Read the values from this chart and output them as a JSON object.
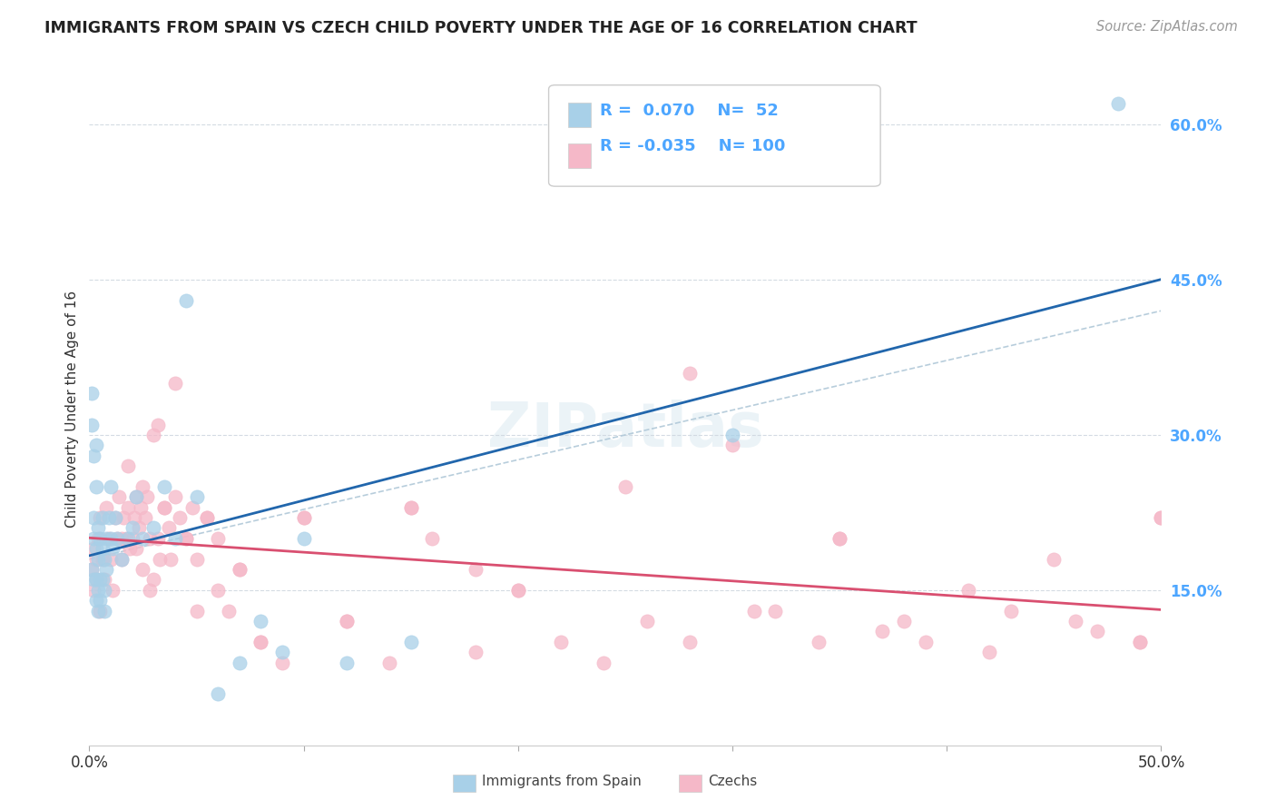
{
  "title": "IMMIGRANTS FROM SPAIN VS CZECH CHILD POVERTY UNDER THE AGE OF 16 CORRELATION CHART",
  "source": "Source: ZipAtlas.com",
  "ylabel": "Child Poverty Under the Age of 16",
  "xlim": [
    0,
    0.5
  ],
  "ylim": [
    0,
    0.65
  ],
  "xticks": [
    0.0,
    0.1,
    0.2,
    0.3,
    0.4,
    0.5
  ],
  "xticklabels": [
    "0.0%",
    "",
    "",
    "",
    "",
    "50.0%"
  ],
  "yticks_right": [
    0.15,
    0.3,
    0.45,
    0.6
  ],
  "ytick_labels_right": [
    "15.0%",
    "30.0%",
    "45.0%",
    "60.0%"
  ],
  "hlines": [
    0.15,
    0.3,
    0.45,
    0.6
  ],
  "blue_scatter_color": "#a8d0e8",
  "pink_scatter_color": "#f5b8c8",
  "blue_line_color": "#2166ac",
  "pink_line_color": "#d94f70",
  "dashed_line_color": "#b0c8d8",
  "right_axis_color": "#4da6ff",
  "legend_label1": "Immigrants from Spain",
  "legend_label2": "Czechs",
  "legend_R1": "R =  0.070",
  "legend_N1": "N=  52",
  "legend_R2": "R = -0.035",
  "legend_N2": "N= 100",
  "spain_x": [
    0.001,
    0.001,
    0.001,
    0.002,
    0.002,
    0.002,
    0.002,
    0.003,
    0.003,
    0.003,
    0.003,
    0.003,
    0.004,
    0.004,
    0.004,
    0.004,
    0.005,
    0.005,
    0.005,
    0.006,
    0.006,
    0.006,
    0.007,
    0.007,
    0.007,
    0.008,
    0.008,
    0.009,
    0.01,
    0.01,
    0.011,
    0.012,
    0.013,
    0.015,
    0.018,
    0.02,
    0.022,
    0.025,
    0.03,
    0.035,
    0.04,
    0.045,
    0.05,
    0.06,
    0.07,
    0.08,
    0.09,
    0.1,
    0.12,
    0.15,
    0.3,
    0.48
  ],
  "spain_y": [
    0.17,
    0.34,
    0.31,
    0.28,
    0.22,
    0.2,
    0.16,
    0.29,
    0.25,
    0.19,
    0.16,
    0.14,
    0.21,
    0.18,
    0.15,
    0.13,
    0.2,
    0.16,
    0.14,
    0.19,
    0.16,
    0.22,
    0.15,
    0.18,
    0.13,
    0.2,
    0.17,
    0.22,
    0.25,
    0.2,
    0.19,
    0.22,
    0.2,
    0.18,
    0.2,
    0.21,
    0.24,
    0.2,
    0.21,
    0.25,
    0.2,
    0.43,
    0.24,
    0.05,
    0.08,
    0.12,
    0.09,
    0.2,
    0.08,
    0.1,
    0.3,
    0.62
  ],
  "czech_x": [
    0.001,
    0.002,
    0.002,
    0.003,
    0.003,
    0.004,
    0.005,
    0.005,
    0.006,
    0.007,
    0.008,
    0.009,
    0.01,
    0.011,
    0.012,
    0.013,
    0.014,
    0.015,
    0.016,
    0.017,
    0.018,
    0.019,
    0.02,
    0.021,
    0.022,
    0.023,
    0.024,
    0.025,
    0.026,
    0.027,
    0.028,
    0.03,
    0.032,
    0.033,
    0.035,
    0.037,
    0.04,
    0.042,
    0.045,
    0.048,
    0.05,
    0.055,
    0.06,
    0.065,
    0.07,
    0.08,
    0.09,
    0.1,
    0.12,
    0.14,
    0.15,
    0.16,
    0.18,
    0.2,
    0.22,
    0.24,
    0.26,
    0.28,
    0.3,
    0.32,
    0.34,
    0.35,
    0.37,
    0.39,
    0.41,
    0.43,
    0.45,
    0.47,
    0.49,
    0.5,
    0.015,
    0.018,
    0.022,
    0.025,
    0.028,
    0.03,
    0.032,
    0.035,
    0.038,
    0.04,
    0.045,
    0.05,
    0.055,
    0.06,
    0.07,
    0.08,
    0.1,
    0.12,
    0.15,
    0.18,
    0.2,
    0.25,
    0.28,
    0.31,
    0.35,
    0.38,
    0.42,
    0.46,
    0.49,
    0.5
  ],
  "czech_y": [
    0.17,
    0.19,
    0.15,
    0.18,
    0.16,
    0.2,
    0.22,
    0.13,
    0.18,
    0.16,
    0.23,
    0.2,
    0.18,
    0.15,
    0.22,
    0.2,
    0.24,
    0.18,
    0.22,
    0.2,
    0.23,
    0.19,
    0.2,
    0.22,
    0.24,
    0.21,
    0.23,
    0.25,
    0.22,
    0.24,
    0.2,
    0.16,
    0.2,
    0.18,
    0.23,
    0.21,
    0.24,
    0.22,
    0.2,
    0.23,
    0.18,
    0.22,
    0.2,
    0.13,
    0.17,
    0.1,
    0.08,
    0.22,
    0.12,
    0.08,
    0.23,
    0.2,
    0.09,
    0.15,
    0.1,
    0.08,
    0.12,
    0.1,
    0.29,
    0.13,
    0.1,
    0.2,
    0.11,
    0.1,
    0.15,
    0.13,
    0.18,
    0.11,
    0.1,
    0.22,
    0.2,
    0.27,
    0.19,
    0.17,
    0.15,
    0.3,
    0.31,
    0.23,
    0.18,
    0.35,
    0.2,
    0.13,
    0.22,
    0.15,
    0.17,
    0.1,
    0.22,
    0.12,
    0.23,
    0.17,
    0.15,
    0.25,
    0.36,
    0.13,
    0.2,
    0.12,
    0.09,
    0.12,
    0.1,
    0.22
  ]
}
